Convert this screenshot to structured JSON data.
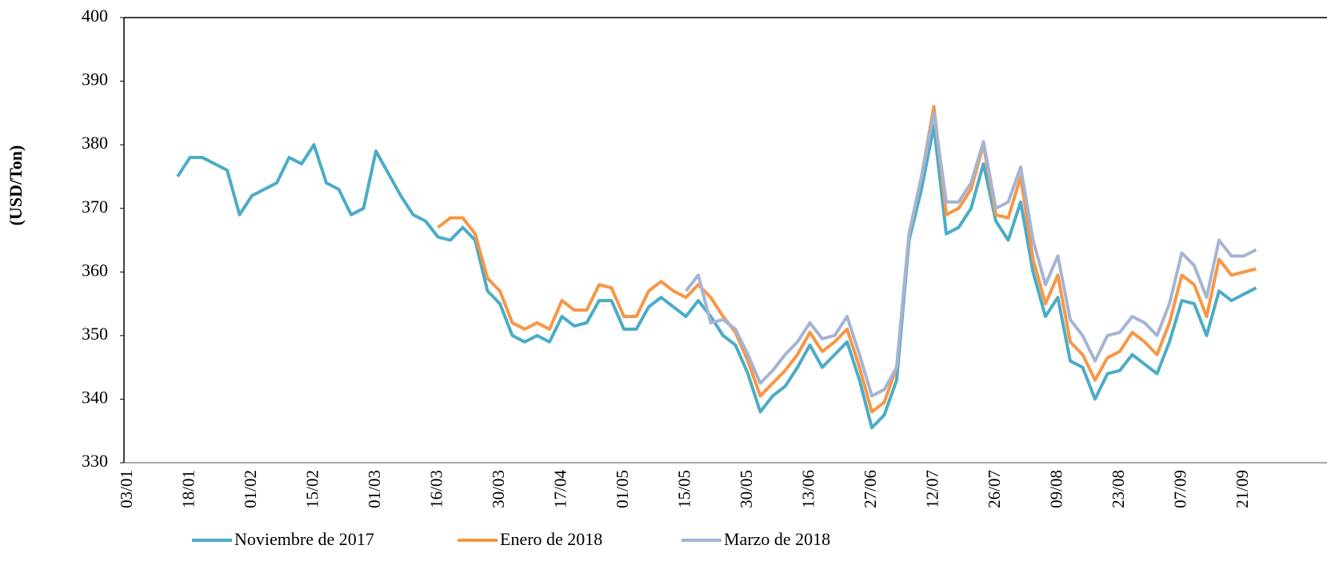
{
  "chart_data": {
    "type": "line",
    "y_label": "(USD/Ton)",
    "categories": [
      "03/01",
      null,
      null,
      null,
      null,
      "18/01",
      null,
      null,
      null,
      null,
      "01/02",
      null,
      null,
      null,
      null,
      "15/02",
      null,
      null,
      null,
      null,
      "01/03",
      null,
      null,
      null,
      null,
      "16/03",
      null,
      null,
      null,
      null,
      "30/03",
      null,
      null,
      null,
      null,
      "17/04",
      null,
      null,
      null,
      null,
      "01/05",
      null,
      null,
      null,
      null,
      "15/05",
      null,
      null,
      null,
      null,
      "30/05",
      null,
      null,
      null,
      null,
      "13/06",
      null,
      null,
      null,
      null,
      "27/06",
      null,
      null,
      null,
      null,
      "12/07",
      null,
      null,
      null,
      null,
      "26/07",
      null,
      null,
      null,
      null,
      "09/08",
      null,
      null,
      null,
      null,
      "23/08",
      null,
      null,
      null,
      null,
      "07/09",
      null,
      null,
      null,
      null,
      "21/09",
      null
    ],
    "series": [
      {
        "name": "Noviembre de 2017",
        "color": "#4bacc6",
        "values": [
          null,
          null,
          null,
          null,
          375,
          378,
          378,
          377,
          376,
          369,
          372,
          373,
          374,
          378,
          377,
          380,
          374,
          373,
          369,
          370,
          379,
          375.5,
          372,
          369,
          368,
          365.5,
          365,
          367,
          365,
          357,
          355,
          350,
          349,
          350,
          349,
          353,
          351.5,
          352,
          355.5,
          355.5,
          351,
          351,
          354.5,
          356,
          354.5,
          353,
          355.5,
          353,
          350,
          348.5,
          344,
          338,
          340.5,
          342,
          345,
          348.5,
          345,
          347,
          349,
          343,
          335.5,
          337.5,
          343,
          365,
          373,
          383,
          366,
          367,
          370,
          377,
          368,
          365,
          371,
          360,
          353,
          356,
          346,
          345,
          340,
          344,
          344.5,
          347,
          345.5,
          344,
          349,
          355.5,
          355,
          350,
          357,
          355.5,
          356.5,
          357.5
        ]
      },
      {
        "name": "Enero de 2018",
        "color": "#f79646",
        "values": [
          null,
          null,
          null,
          null,
          null,
          null,
          null,
          null,
          null,
          null,
          null,
          null,
          null,
          null,
          null,
          null,
          null,
          null,
          null,
          null,
          null,
          null,
          null,
          null,
          null,
          367,
          368.5,
          368.5,
          366,
          359,
          357,
          352,
          351,
          352,
          351,
          355.5,
          354,
          354,
          358,
          357.5,
          353,
          353,
          357,
          358.5,
          357,
          356,
          358,
          356,
          353,
          350.5,
          346,
          340.5,
          342.5,
          344.5,
          347,
          350.5,
          347.5,
          349,
          351,
          345,
          338,
          339.5,
          345,
          366,
          375,
          386,
          369,
          370,
          373,
          380,
          369,
          368.5,
          375,
          362,
          355,
          359.5,
          349,
          347,
          343,
          346.5,
          347.5,
          350.5,
          349,
          347,
          352,
          359.5,
          358,
          353,
          362,
          359.5,
          360,
          360.5
        ]
      },
      {
        "name": "Marzo de 2018",
        "color": "#a5b4d4",
        "values": [
          null,
          null,
          null,
          null,
          null,
          null,
          null,
          null,
          null,
          null,
          null,
          null,
          null,
          null,
          null,
          null,
          null,
          null,
          null,
          null,
          null,
          null,
          null,
          null,
          null,
          null,
          null,
          null,
          null,
          null,
          null,
          null,
          null,
          null,
          null,
          null,
          null,
          null,
          null,
          null,
          null,
          null,
          null,
          null,
          null,
          357,
          359.5,
          352,
          352.5,
          351,
          347,
          342.5,
          344.5,
          347,
          349,
          352,
          349.5,
          350,
          353,
          347,
          340.5,
          341.5,
          345,
          366,
          375,
          385,
          371,
          371,
          374,
          380.5,
          370,
          371,
          376.5,
          365,
          358,
          362.5,
          352.5,
          350,
          346,
          350,
          350.5,
          353,
          352,
          350,
          355,
          363,
          361,
          356,
          365,
          362.5,
          362.5,
          363.5
        ]
      }
    ],
    "ylim": [
      330,
      400
    ],
    "yticks": [
      330,
      340,
      350,
      360,
      370,
      380,
      390,
      400
    ],
    "grid": false,
    "legend": "bottom"
  }
}
